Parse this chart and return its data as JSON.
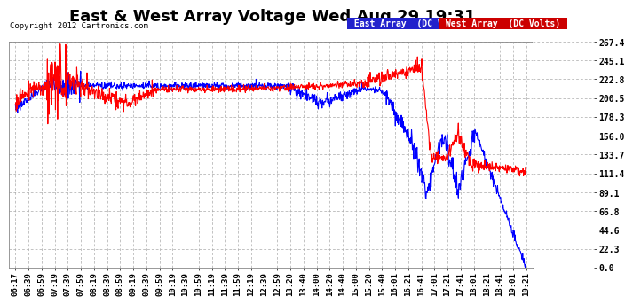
{
  "title": "East & West Array Voltage Wed Aug 29 19:31",
  "copyright": "Copyright 2012 Cartronics.com",
  "east_label": "East Array  (DC Volts)",
  "west_label": "West Array  (DC Volts)",
  "east_color": "#0000ff",
  "west_color": "#ff0000",
  "east_legend_bg": "#2222cc",
  "west_legend_bg": "#cc0000",
  "plot_bg_color": "#ffffff",
  "outer_bg": "#ffffff",
  "grid_color": "#aaaaaa",
  "ylim": [
    0.0,
    267.4
  ],
  "yticks": [
    0.0,
    22.3,
    44.6,
    66.8,
    89.1,
    111.4,
    133.7,
    156.0,
    178.3,
    200.5,
    222.8,
    245.1,
    267.4
  ],
  "x_labels": [
    "06:17",
    "06:39",
    "06:59",
    "07:19",
    "07:39",
    "07:59",
    "08:19",
    "08:39",
    "08:59",
    "09:19",
    "09:39",
    "09:59",
    "10:19",
    "10:39",
    "10:59",
    "11:19",
    "11:39",
    "11:59",
    "12:19",
    "12:39",
    "12:59",
    "13:20",
    "13:40",
    "14:00",
    "14:20",
    "14:40",
    "15:00",
    "15:20",
    "15:40",
    "16:01",
    "16:21",
    "16:41",
    "17:01",
    "17:21",
    "17:41",
    "18:01",
    "18:21",
    "18:41",
    "19:01",
    "19:21"
  ],
  "line_width": 0.8,
  "title_fontsize": 13,
  "tick_fontsize": 6.5,
  "copyright_fontsize": 6.5,
  "legend_fontsize": 7
}
